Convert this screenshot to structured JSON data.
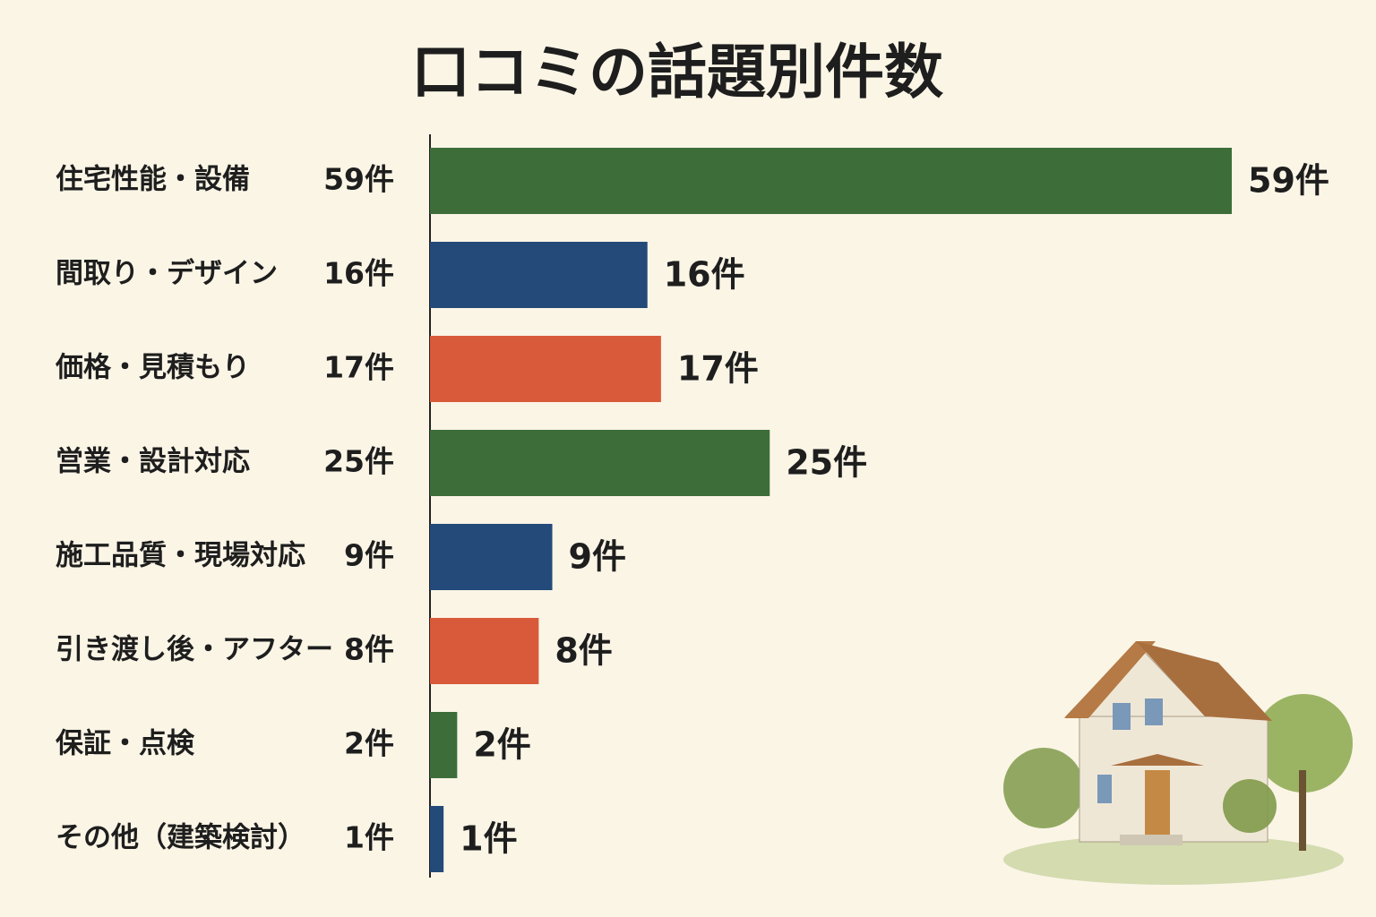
{
  "chart_data": {
    "type": "bar",
    "orientation": "horizontal",
    "title": "口コミの話題別件数",
    "categories": [
      "住宅性能・設備",
      "間取り・デザイン",
      "価格・見積もり",
      "営業・設計対応",
      "施工品質・現場対応",
      "引き渡し後・アフター",
      "保証・点検",
      "その他（建築検討）"
    ],
    "values": [
      59,
      16,
      17,
      25,
      9,
      8,
      2,
      1
    ],
    "value_labels": [
      "59件",
      "16件",
      "17件",
      "25件",
      "9件",
      "8件",
      "2件",
      "1件"
    ],
    "colors": [
      "#3d6e3a",
      "#244a7a",
      "#d95a3a",
      "#3d6e3a",
      "#244a7a",
      "#d95a3a",
      "#3d6e3a",
      "#244a7a"
    ]
  }
}
